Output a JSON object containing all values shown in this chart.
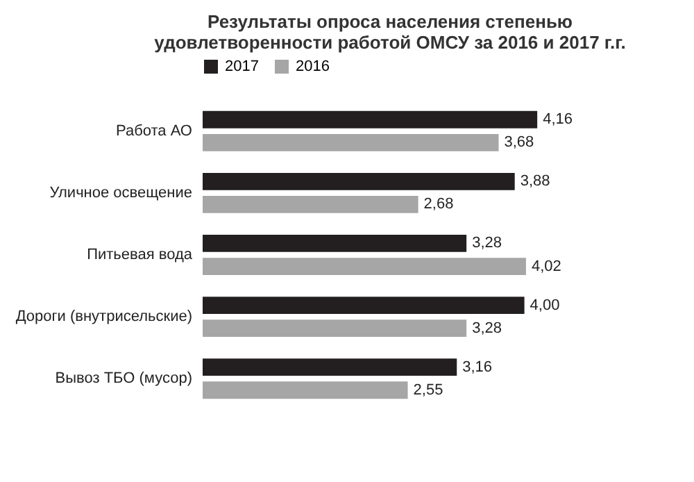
{
  "chart_data": {
    "type": "bar",
    "orientation": "horizontal",
    "title": "Результаты опроса населения степенью удовлетворенности работой ОМСУ за 2016 и 2017 г.г.",
    "categories": [
      "Работа АО",
      "Уличное освещение",
      "Питьевая вода",
      "Дороги (внутрисельские)",
      "Вывоз ТБО (мусор)"
    ],
    "series": [
      {
        "name": "2017",
        "color": "#231f20",
        "values": [
          4.16,
          3.88,
          3.28,
          4.0,
          3.16
        ],
        "value_labels": [
          "4,16",
          "3,88",
          "3,28",
          "4,00",
          "3,16"
        ]
      },
      {
        "name": "2016",
        "color": "#a6a6a6",
        "values": [
          3.68,
          2.68,
          4.02,
          3.28,
          2.55
        ],
        "value_labels": [
          "3,68",
          "2,68",
          "4,02",
          "3,28",
          "2,55"
        ]
      }
    ],
    "legend": "top"
  }
}
